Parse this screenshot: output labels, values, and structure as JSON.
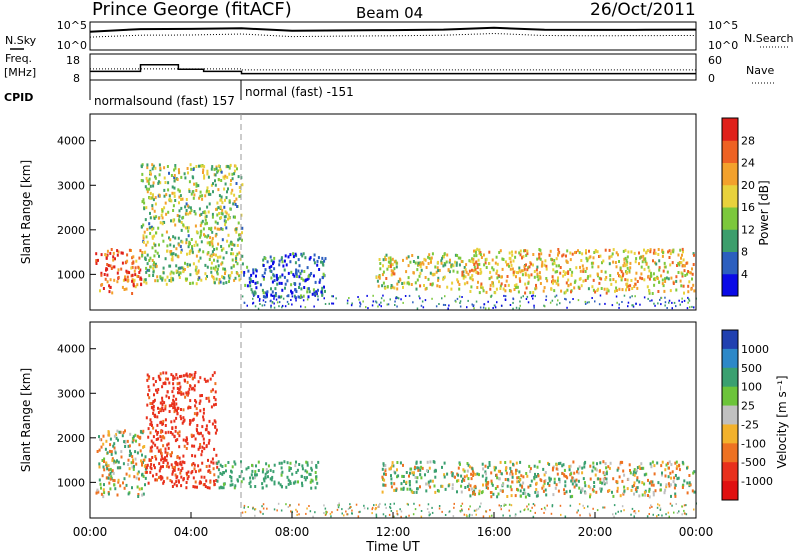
{
  "header": {
    "station": "Prince George (fitACF)",
    "beam": "Beam 04",
    "date": "26/Oct/2011"
  },
  "noise_panel": {
    "left_label": "N.Sky",
    "right_label": "N.Search",
    "left_ticks": [
      "10^5",
      "10^0"
    ],
    "right_ticks": [
      "10^5",
      "10^0"
    ]
  },
  "freq_panel": {
    "left_label_1": "Freq.",
    "left_label_2": "[MHz]",
    "right_label": "Nave",
    "left_ticks": [
      "18",
      "8"
    ],
    "right_ticks": [
      "60",
      "0"
    ]
  },
  "cpid": {
    "label": "CPID",
    "segments": [
      {
        "text": "normalsound (fast) 157"
      },
      {
        "text": "normal (fast) -151"
      }
    ]
  },
  "x_axis": {
    "label": "Time UT",
    "ticks": [
      "00:00",
      "04:00",
      "08:00",
      "12:00",
      "16:00",
      "20:00",
      "00:00"
    ]
  },
  "power_panel": {
    "ylabel": "Slant Range [km]",
    "yticks": [
      "1000",
      "2000",
      "3000",
      "4000"
    ],
    "colorbar_label": "Power [dB]",
    "colorbar_ticks": [
      "4",
      "8",
      "12",
      "16",
      "20",
      "24",
      "28"
    ],
    "colorbar_colors": [
      "#0a0ae6",
      "#2c5fbf",
      "#3c9e6c",
      "#7cc83c",
      "#e8d23c",
      "#f3a12c",
      "#ee6224",
      "#e0201b"
    ]
  },
  "velocity_panel": {
    "ylabel": "Slant Range [km]",
    "yticks": [
      "1000",
      "2000",
      "3000",
      "4000"
    ],
    "colorbar_label": "Velocity [m s⁻¹]",
    "colorbar_ticks": [
      "1000",
      "500",
      "100",
      "25",
      "-25",
      "-100",
      "-500",
      "-1000"
    ],
    "colorbar_colors": [
      "#2040b0",
      "#2d88c8",
      "#3aa070",
      "#6cc43a",
      "#c0c0c0",
      "#f3b22c",
      "#ee7222",
      "#e8301c",
      "#e01010"
    ]
  },
  "chart_data": [
    {
      "type": "line",
      "title": "N.Sky / N.Search",
      "x": [
        "00:00",
        "02:00",
        "04:00",
        "06:00",
        "08:00",
        "10:00",
        "12:00",
        "14:00",
        "16:00",
        "18:00",
        "20:00",
        "22:00",
        "24:00"
      ],
      "series": [
        {
          "name": "N.Sky",
          "values": [
            5000,
            20000,
            22000,
            30000,
            8000,
            10000,
            12000,
            15000,
            40000,
            14000,
            13000,
            14000,
            15000
          ]
        },
        {
          "name": "N.Search",
          "values": [
            300,
            800,
            900,
            1500,
            400,
            500,
            600,
            800,
            2000,
            700,
            600,
            650,
            700
          ]
        }
      ],
      "ylim": [
        1,
        100000
      ],
      "log_scale": true
    },
    {
      "type": "line",
      "title": "Freq / Nave",
      "x": [
        "00:00",
        "02:00",
        "03:30",
        "04:30",
        "06:00",
        "12:00",
        "18:00",
        "24:00"
      ],
      "series": [
        {
          "name": "Freq.",
          "values": [
            11,
            14,
            12,
            11,
            10,
            10,
            10,
            10
          ]
        },
        {
          "name": "Nave",
          "values": [
            25,
            25,
            25,
            25,
            22,
            22,
            22,
            22
          ]
        }
      ],
      "ylim": [
        8,
        18
      ]
    },
    {
      "type": "heatmap",
      "title": "Power",
      "x_range_hours": [
        0,
        24
      ],
      "y_range_km": [
        200,
        4600
      ],
      "description_features": [
        {
          "t": [
            0.2,
            2.0
          ],
          "range": [
            600,
            1600
          ],
          "level_db": 24
        },
        {
          "t": [
            2.0,
            6.0
          ],
          "range": [
            800,
            3500
          ],
          "level_db": 14
        },
        {
          "t": [
            6.0,
            9.3
          ],
          "range": [
            500,
            1500
          ],
          "level_db": 6
        },
        {
          "t": [
            11.3,
            15.0
          ],
          "range": [
            700,
            1500
          ],
          "level_db": 16
        },
        {
          "t": [
            15.0,
            23.9
          ],
          "range": [
            600,
            1600
          ],
          "level_db": 18
        }
      ],
      "colorbar_range_db": [
        0,
        30
      ]
    },
    {
      "type": "heatmap",
      "title": "Velocity",
      "x_range_hours": [
        0,
        24
      ],
      "y_range_km": [
        200,
        4600
      ],
      "description_features": [
        {
          "t": [
            0.2,
            2.2
          ],
          "range": [
            700,
            2200
          ],
          "velocity": 0
        },
        {
          "t": [
            2.2,
            5.0
          ],
          "range": [
            900,
            3500
          ],
          "velocity": -400
        },
        {
          "t": [
            5.0,
            9.0
          ],
          "range": [
            900,
            1500
          ],
          "velocity": 150
        },
        {
          "t": [
            11.5,
            15.0
          ],
          "range": [
            800,
            1500
          ],
          "velocity": 50
        },
        {
          "t": [
            15.0,
            23.9
          ],
          "range": [
            700,
            1500
          ],
          "velocity": 0
        }
      ],
      "colorbar_range": [
        -1000,
        1000
      ]
    }
  ]
}
